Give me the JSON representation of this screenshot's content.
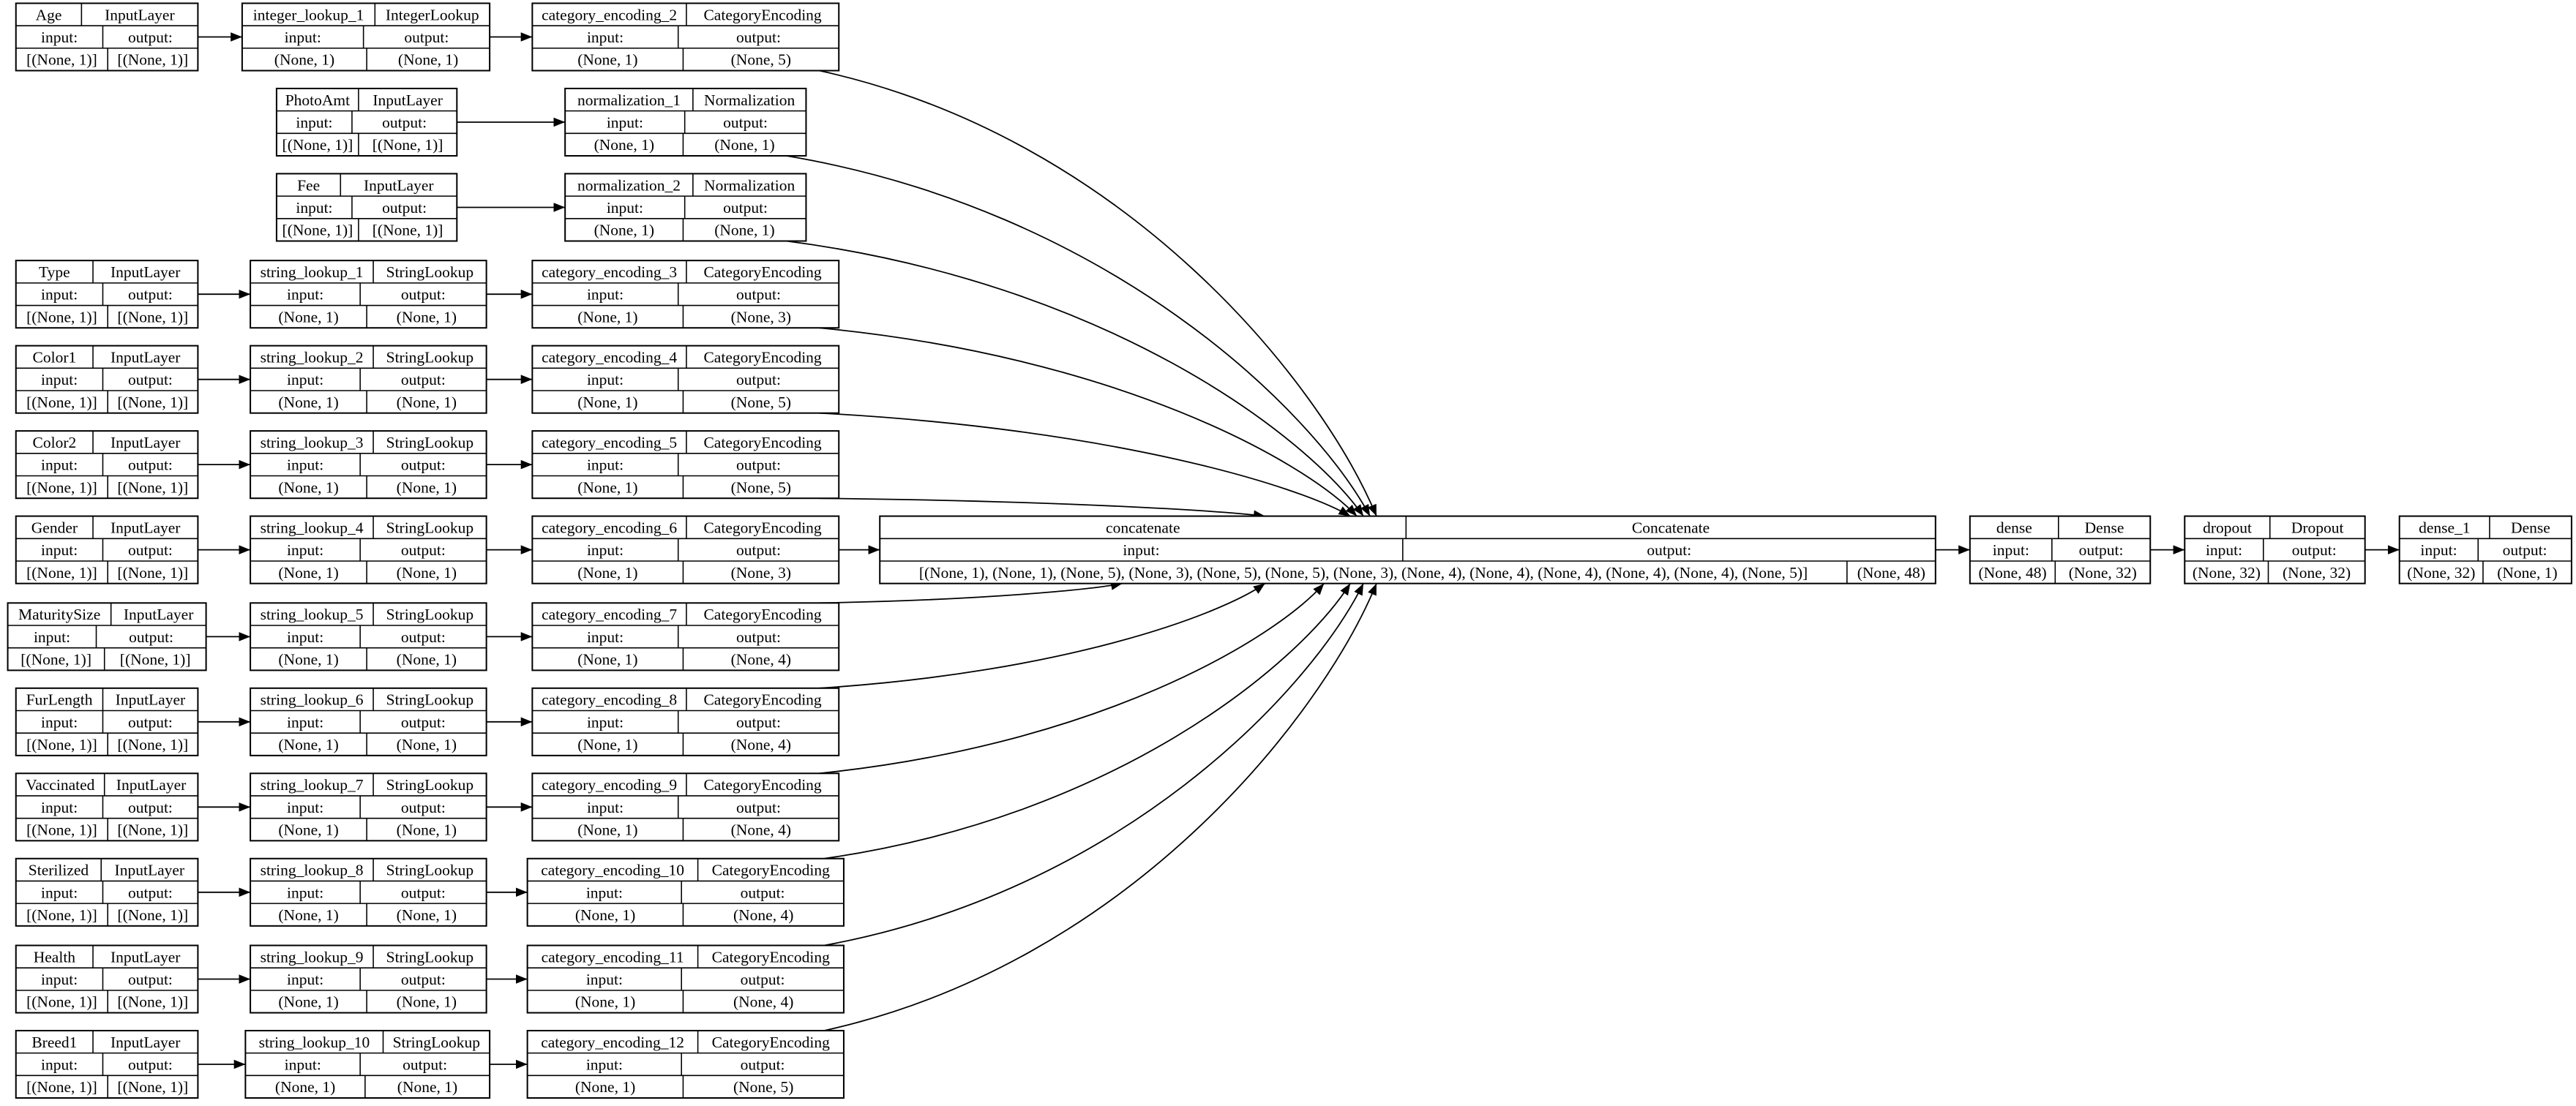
{
  "labels": {
    "input": "input:",
    "output": "output:"
  },
  "nodes": [
    {
      "id": "Age",
      "name": "Age",
      "type": "InputLayer",
      "input": "[(None, 1)]",
      "output": "[(None, 1)]"
    },
    {
      "id": "integer_lookup_1",
      "name": "integer_lookup_1",
      "type": "IntegerLookup",
      "input": "(None, 1)",
      "output": "(None, 1)"
    },
    {
      "id": "category_encoding_2",
      "name": "category_encoding_2",
      "type": "CategoryEncoding",
      "input": "(None, 1)",
      "output": "(None, 5)"
    },
    {
      "id": "PhotoAmt",
      "name": "PhotoAmt",
      "type": "InputLayer",
      "input": "[(None, 1)]",
      "output": "[(None, 1)]"
    },
    {
      "id": "normalization_1",
      "name": "normalization_1",
      "type": "Normalization",
      "input": "(None, 1)",
      "output": "(None, 1)"
    },
    {
      "id": "Fee",
      "name": "Fee",
      "type": "InputLayer",
      "input": "[(None, 1)]",
      "output": "[(None, 1)]"
    },
    {
      "id": "normalization_2",
      "name": "normalization_2",
      "type": "Normalization",
      "input": "(None, 1)",
      "output": "(None, 1)"
    },
    {
      "id": "Type",
      "name": "Type",
      "type": "InputLayer",
      "input": "[(None, 1)]",
      "output": "[(None, 1)]"
    },
    {
      "id": "string_lookup_1",
      "name": "string_lookup_1",
      "type": "StringLookup",
      "input": "(None, 1)",
      "output": "(None, 1)"
    },
    {
      "id": "category_encoding_3",
      "name": "category_encoding_3",
      "type": "CategoryEncoding",
      "input": "(None, 1)",
      "output": "(None, 3)"
    },
    {
      "id": "Color1",
      "name": "Color1",
      "type": "InputLayer",
      "input": "[(None, 1)]",
      "output": "[(None, 1)]"
    },
    {
      "id": "string_lookup_2",
      "name": "string_lookup_2",
      "type": "StringLookup",
      "input": "(None, 1)",
      "output": "(None, 1)"
    },
    {
      "id": "category_encoding_4",
      "name": "category_encoding_4",
      "type": "CategoryEncoding",
      "input": "(None, 1)",
      "output": "(None, 5)"
    },
    {
      "id": "Color2",
      "name": "Color2",
      "type": "InputLayer",
      "input": "[(None, 1)]",
      "output": "[(None, 1)]"
    },
    {
      "id": "string_lookup_3",
      "name": "string_lookup_3",
      "type": "StringLookup",
      "input": "(None, 1)",
      "output": "(None, 1)"
    },
    {
      "id": "category_encoding_5",
      "name": "category_encoding_5",
      "type": "CategoryEncoding",
      "input": "(None, 1)",
      "output": "(None, 5)"
    },
    {
      "id": "Gender",
      "name": "Gender",
      "type": "InputLayer",
      "input": "[(None, 1)]",
      "output": "[(None, 1)]"
    },
    {
      "id": "string_lookup_4",
      "name": "string_lookup_4",
      "type": "StringLookup",
      "input": "(None, 1)",
      "output": "(None, 1)"
    },
    {
      "id": "category_encoding_6",
      "name": "category_encoding_6",
      "type": "CategoryEncoding",
      "input": "(None, 1)",
      "output": "(None, 3)"
    },
    {
      "id": "MaturitySize",
      "name": "MaturitySize",
      "type": "InputLayer",
      "input": "[(None, 1)]",
      "output": "[(None, 1)]"
    },
    {
      "id": "string_lookup_5",
      "name": "string_lookup_5",
      "type": "StringLookup",
      "input": "(None, 1)",
      "output": "(None, 1)"
    },
    {
      "id": "category_encoding_7",
      "name": "category_encoding_7",
      "type": "CategoryEncoding",
      "input": "(None, 1)",
      "output": "(None, 4)"
    },
    {
      "id": "FurLength",
      "name": "FurLength",
      "type": "InputLayer",
      "input": "[(None, 1)]",
      "output": "[(None, 1)]"
    },
    {
      "id": "string_lookup_6",
      "name": "string_lookup_6",
      "type": "StringLookup",
      "input": "(None, 1)",
      "output": "(None, 1)"
    },
    {
      "id": "category_encoding_8",
      "name": "category_encoding_8",
      "type": "CategoryEncoding",
      "input": "(None, 1)",
      "output": "(None, 4)"
    },
    {
      "id": "Vaccinated",
      "name": "Vaccinated",
      "type": "InputLayer",
      "input": "[(None, 1)]",
      "output": "[(None, 1)]"
    },
    {
      "id": "string_lookup_7",
      "name": "string_lookup_7",
      "type": "StringLookup",
      "input": "(None, 1)",
      "output": "(None, 1)"
    },
    {
      "id": "category_encoding_9",
      "name": "category_encoding_9",
      "type": "CategoryEncoding",
      "input": "(None, 1)",
      "output": "(None, 4)"
    },
    {
      "id": "Sterilized",
      "name": "Sterilized",
      "type": "InputLayer",
      "input": "[(None, 1)]",
      "output": "[(None, 1)]"
    },
    {
      "id": "string_lookup_8",
      "name": "string_lookup_8",
      "type": "StringLookup",
      "input": "(None, 1)",
      "output": "(None, 1)"
    },
    {
      "id": "category_encoding_10",
      "name": "category_encoding_10",
      "type": "CategoryEncoding",
      "input": "(None, 1)",
      "output": "(None, 4)"
    },
    {
      "id": "Health",
      "name": "Health",
      "type": "InputLayer",
      "input": "[(None, 1)]",
      "output": "[(None, 1)]"
    },
    {
      "id": "string_lookup_9",
      "name": "string_lookup_9",
      "type": "StringLookup",
      "input": "(None, 1)",
      "output": "(None, 1)"
    },
    {
      "id": "category_encoding_11",
      "name": "category_encoding_11",
      "type": "CategoryEncoding",
      "input": "(None, 1)",
      "output": "(None, 4)"
    },
    {
      "id": "Breed1",
      "name": "Breed1",
      "type": "InputLayer",
      "input": "[(None, 1)]",
      "output": "[(None, 1)]"
    },
    {
      "id": "string_lookup_10",
      "name": "string_lookup_10",
      "type": "StringLookup",
      "input": "(None, 1)",
      "output": "(None, 1)"
    },
    {
      "id": "category_encoding_12",
      "name": "category_encoding_12",
      "type": "CategoryEncoding",
      "input": "(None, 1)",
      "output": "(None, 5)"
    },
    {
      "id": "concatenate",
      "name": "concatenate",
      "type": "Concatenate",
      "input": "[(None, 1), (None, 1), (None, 5), (None, 3), (None, 5), (None, 5), (None, 3), (None, 4), (None, 4), (None, 4), (None, 4), (None, 4), (None, 5)]",
      "output": "(None, 48)"
    },
    {
      "id": "dense",
      "name": "dense",
      "type": "Dense",
      "input": "(None, 48)",
      "output": "(None, 32)"
    },
    {
      "id": "dropout",
      "name": "dropout",
      "type": "Dropout",
      "input": "(None, 32)",
      "output": "(None, 32)"
    },
    {
      "id": "dense_1",
      "name": "dense_1",
      "type": "Dense",
      "input": "(None, 32)",
      "output": "(None, 1)"
    }
  ]
}
